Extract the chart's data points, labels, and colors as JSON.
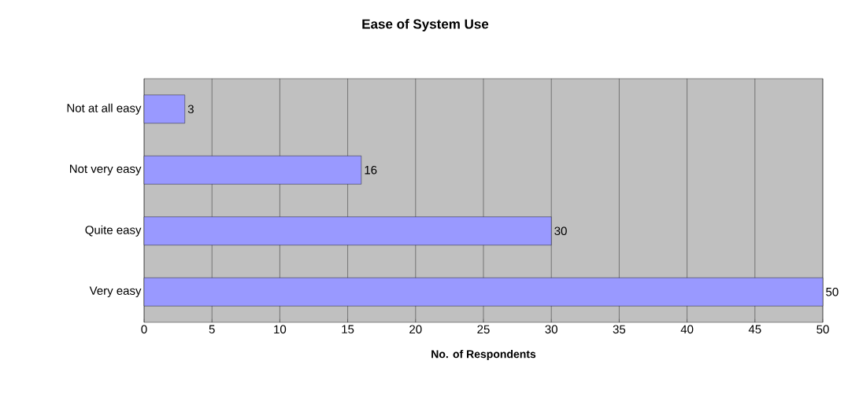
{
  "chart_data": {
    "type": "bar",
    "orientation": "horizontal",
    "title": "Ease of System Use",
    "xlabel": "No. of Respondents",
    "categories": [
      "Not at all easy",
      "Not very easy",
      "Quite easy",
      "Very easy"
    ],
    "values": [
      3,
      16,
      30,
      50
    ],
    "color": "#9999ff",
    "xlim": [
      0,
      50
    ],
    "xticks": [
      0,
      5,
      10,
      15,
      20,
      25,
      30,
      35,
      40,
      45,
      50
    ],
    "grid": "x",
    "data_labels": true
  }
}
